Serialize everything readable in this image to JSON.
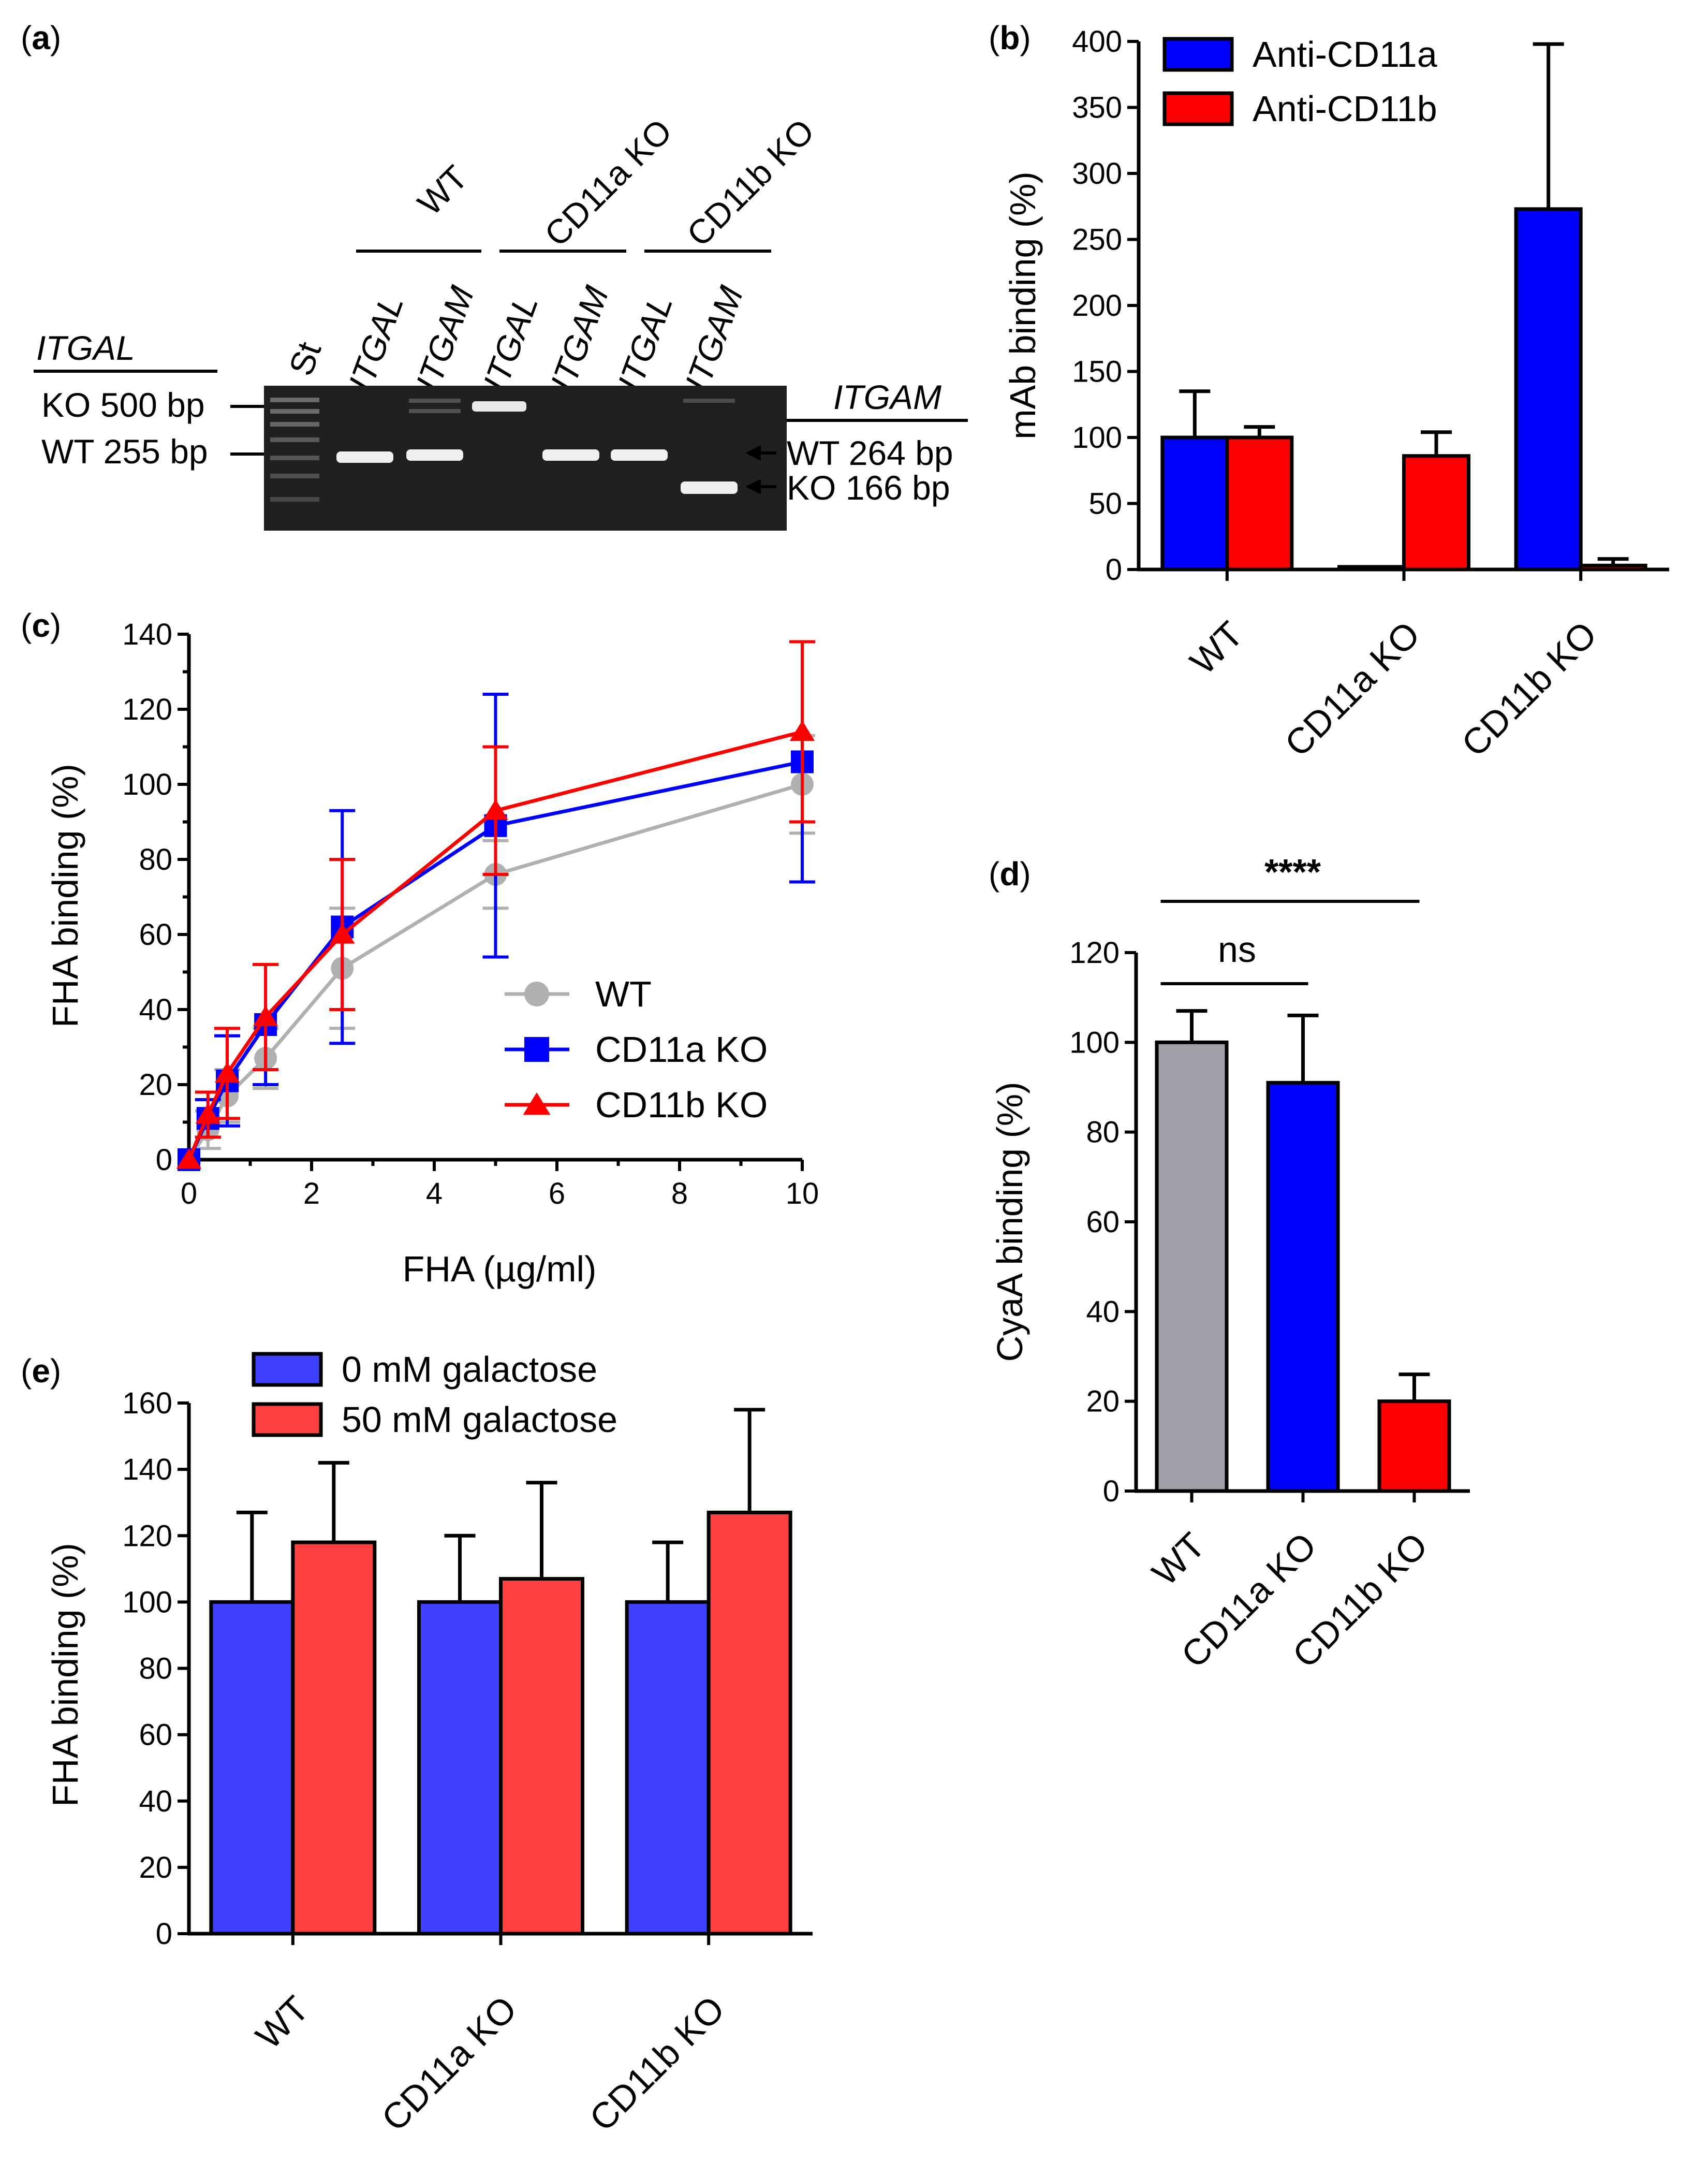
{
  "panels": {
    "a": {
      "label": "(a)",
      "letter": "a"
    },
    "b": {
      "label": "(b)",
      "letter": "b"
    },
    "c": {
      "label": "(c)",
      "letter": "c"
    },
    "d": {
      "label": "(d)",
      "letter": "d"
    },
    "e": {
      "label": "(e)",
      "letter": "e"
    }
  },
  "gel": {
    "groups": [
      "WT",
      "CD11a KO",
      "CD11b KO"
    ],
    "lanes": [
      "St",
      "ITGAL",
      "ITGAM",
      "ITGAL",
      "ITGAM",
      "ITGAL",
      "ITGAM"
    ],
    "left_header": "ITGAL",
    "right_header": "ITGAM",
    "left_markers": [
      "KO 500 bp",
      "WT 255 bp"
    ],
    "right_markers": [
      "WT 264 bp",
      "KO 166 bp"
    ],
    "colors": {
      "gel_bg": "#202020",
      "band": "#f0f0f0"
    }
  },
  "chart_data": [
    {
      "panel": "b",
      "type": "bar",
      "categories": [
        "WT",
        "CD11a KO",
        "CD11b KO"
      ],
      "series": [
        {
          "name": "Anti-CD11a",
          "color": "#0000ff",
          "values": [
            100,
            2,
            273
          ],
          "errors": [
            35,
            0,
            125
          ]
        },
        {
          "name": "Anti-CD11b",
          "color": "#ff0000",
          "values": [
            100,
            86,
            3
          ],
          "errors": [
            8,
            18,
            5
          ]
        }
      ],
      "ylabel": "mAb binding (%)",
      "ylim": [
        0,
        400
      ],
      "yticks": [
        0,
        50,
        100,
        150,
        200,
        250,
        300,
        350,
        400
      ],
      "legend": "top-left"
    },
    {
      "panel": "c",
      "type": "line",
      "x": [
        0,
        0.31,
        0.625,
        1.25,
        2.5,
        5,
        10
      ],
      "series": [
        {
          "name": "WT",
          "color": "#b0b0b0",
          "marker": "circle",
          "values": [
            0,
            8,
            17,
            27,
            51,
            76,
            100
          ],
          "errors": [
            0,
            5,
            7,
            8,
            16,
            9,
            13
          ]
        },
        {
          "name": "CD11a KO",
          "color": "#0000ff",
          "marker": "square",
          "values": [
            0,
            11,
            21,
            36,
            62,
            89,
            106
          ],
          "errors": [
            0,
            5,
            12,
            16,
            31,
            35,
            32
          ]
        },
        {
          "name": "CD11b KO",
          "color": "#ff0000",
          "marker": "triangle",
          "values": [
            0,
            12,
            23,
            38,
            60,
            93,
            114
          ],
          "errors": [
            0,
            6,
            12,
            14,
            20,
            17,
            24
          ]
        }
      ],
      "xlabel": "FHA (µg/ml)",
      "ylabel": "FHA binding (%)",
      "xlim": [
        0,
        10
      ],
      "ylim": [
        0,
        140
      ],
      "xticks": [
        0,
        2,
        4,
        6,
        8,
        10
      ],
      "yticks": [
        0,
        20,
        40,
        60,
        80,
        100,
        120,
        140
      ],
      "legend": "center-right"
    },
    {
      "panel": "d",
      "type": "bar",
      "categories": [
        "WT",
        "CD11a KO",
        "CD11b KO"
      ],
      "values": [
        100,
        91,
        20
      ],
      "errors": [
        7,
        15,
        6
      ],
      "colors": [
        "#a0a0a8",
        "#0000ff",
        "#ff0000"
      ],
      "ylabel": "CyaA binding (%)",
      "ylim": [
        0,
        120
      ],
      "yticks": [
        0,
        20,
        40,
        60,
        80,
        100,
        120
      ],
      "annotations": [
        {
          "text": "****",
          "from": "WT",
          "to": "CD11b KO"
        },
        {
          "text": "ns",
          "from": "WT",
          "to": "CD11a KO"
        }
      ]
    },
    {
      "panel": "e",
      "type": "bar",
      "categories": [
        "WT",
        "CD11a KO",
        "CD11b KO"
      ],
      "series": [
        {
          "name": "0 mM galactose",
          "color": "#4040ff",
          "values": [
            100,
            100,
            100
          ],
          "errors": [
            27,
            20,
            18
          ]
        },
        {
          "name": "50 mM galactose",
          "color": "#ff4040",
          "values": [
            118,
            107,
            127
          ],
          "errors": [
            24,
            29,
            31
          ]
        }
      ],
      "ylabel": "FHA binding (%)",
      "ylim": [
        0,
        160
      ],
      "yticks": [
        0,
        20,
        40,
        60,
        80,
        100,
        120,
        140,
        160
      ],
      "legend": "top-left"
    }
  ]
}
